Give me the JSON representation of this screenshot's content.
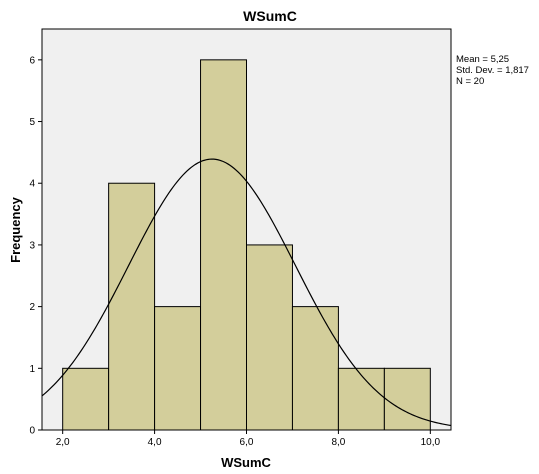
{
  "chart_data": {
    "type": "bar",
    "title": "WSumC",
    "xlabel": "WSumC",
    "ylabel": "Frequency",
    "bins": [
      {
        "from": 2,
        "to": 3,
        "count": 1
      },
      {
        "from": 3,
        "to": 4,
        "count": 4
      },
      {
        "from": 4,
        "to": 5,
        "count": 2
      },
      {
        "from": 5,
        "to": 6,
        "count": 6
      },
      {
        "from": 6,
        "to": 7,
        "count": 3
      },
      {
        "from": 7,
        "to": 8,
        "count": 2
      },
      {
        "from": 8,
        "to": 9,
        "count": 1
      },
      {
        "from": 9,
        "to": 10,
        "count": 1
      }
    ],
    "xlim": [
      1.55,
      10.45
    ],
    "ylim": [
      0,
      6.5
    ],
    "xticks": [
      2,
      4,
      6,
      8,
      10
    ],
    "xtick_labels": [
      "2,0",
      "4,0",
      "6,0",
      "8,0",
      "10,0"
    ],
    "yticks": [
      0,
      1,
      2,
      3,
      4,
      5,
      6
    ],
    "ytick_labels": [
      "0",
      "1",
      "2",
      "3",
      "4",
      "5",
      "6"
    ],
    "normal_curve": {
      "mean": 5.25,
      "std_dev": 1.817,
      "n": 20
    },
    "stats": [
      "Mean = 5,25",
      "Std. Dev. = 1,817",
      "N = 20"
    ],
    "colors": {
      "plot_background": "#f0f0f0",
      "bar_fill": "#d3ce9b",
      "bar_stroke": "#000000",
      "curve": "#000000"
    }
  }
}
